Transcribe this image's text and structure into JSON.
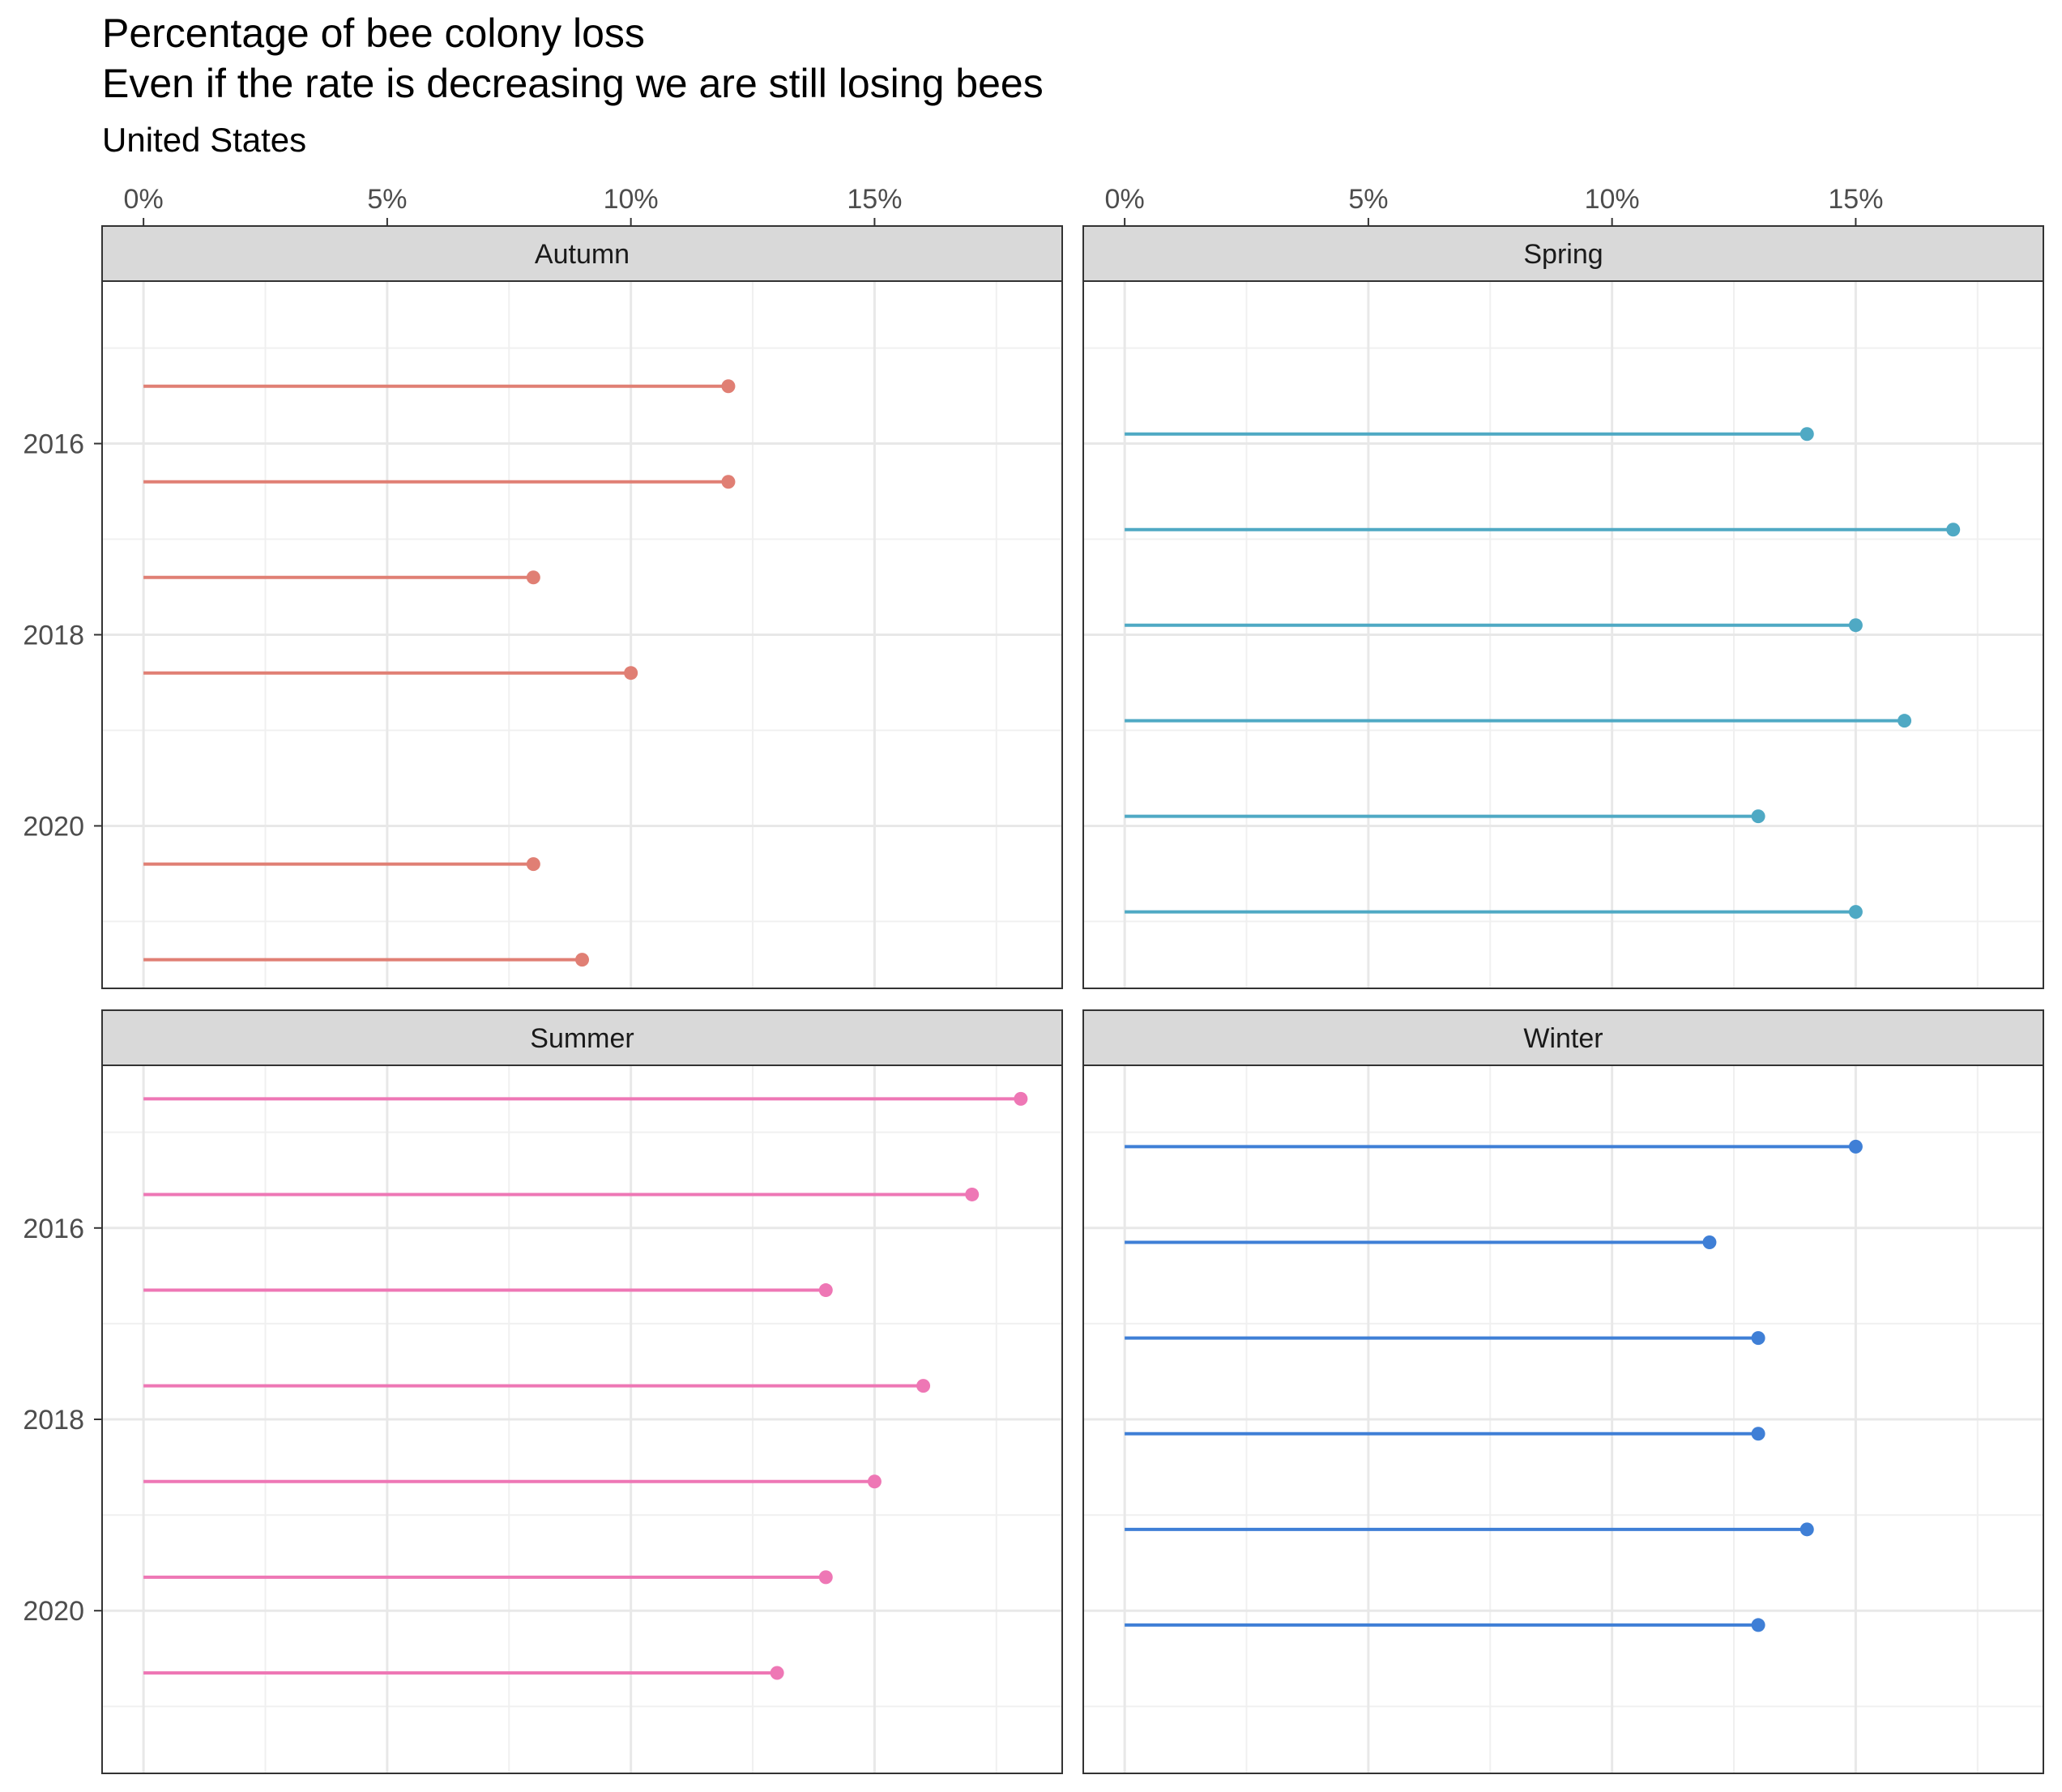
{
  "chart_data": {
    "type": "lollipop",
    "title": "Percentage of bee colony loss\nEven if the rate is decreasing we are still losing bees",
    "subtitle": "United States",
    "xlabel": "",
    "ylabel": "",
    "x_ticks": [
      "0%",
      "5%",
      "10%",
      "15%"
    ],
    "x_tick_values": [
      0,
      5,
      10,
      15
    ],
    "xlim": [
      -0.85,
      18.85
    ],
    "y_ticks": [
      "2016",
      "2018",
      "2020"
    ],
    "y_tick_values": [
      2016,
      2018,
      2020
    ],
    "ylim": [
      2014.3,
      2021.7
    ],
    "grid": true,
    "legend": "none",
    "panels": [
      {
        "name": "Autumn",
        "color": "#E07F74",
        "points": [
          {
            "year": 2015.4,
            "value": 12
          },
          {
            "year": 2016.4,
            "value": 12
          },
          {
            "year": 2017.4,
            "value": 8
          },
          {
            "year": 2018.4,
            "value": 10
          },
          {
            "year": 2020.4,
            "value": 8
          },
          {
            "year": 2021.4,
            "value": 9
          }
        ]
      },
      {
        "name": "Spring",
        "color": "#4FA9C4",
        "points": [
          {
            "year": 2015.9,
            "value": 14
          },
          {
            "year": 2016.9,
            "value": 17
          },
          {
            "year": 2017.9,
            "value": 15
          },
          {
            "year": 2018.9,
            "value": 16
          },
          {
            "year": 2019.9,
            "value": 13
          },
          {
            "year": 2020.9,
            "value": 15
          }
        ]
      },
      {
        "name": "Summer",
        "color": "#EE77B5",
        "points": [
          {
            "year": 2014.65,
            "value": 18
          },
          {
            "year": 2015.65,
            "value": 17
          },
          {
            "year": 2016.65,
            "value": 14
          },
          {
            "year": 2017.65,
            "value": 16
          },
          {
            "year": 2018.65,
            "value": 15
          },
          {
            "year": 2019.65,
            "value": 14
          },
          {
            "year": 2020.65,
            "value": 13
          }
        ]
      },
      {
        "name": "Winter",
        "color": "#3F7FD6",
        "points": [
          {
            "year": 2015.15,
            "value": 15
          },
          {
            "year": 2016.15,
            "value": 12
          },
          {
            "year": 2017.15,
            "value": 13
          },
          {
            "year": 2018.15,
            "value": 13
          },
          {
            "year": 2019.15,
            "value": 14
          },
          {
            "year": 2020.15,
            "value": 13
          }
        ]
      }
    ]
  }
}
